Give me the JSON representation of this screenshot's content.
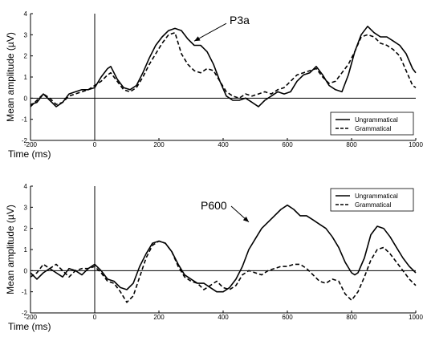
{
  "chart_data": [
    {
      "type": "line",
      "xlabel": "Time (ms)",
      "ylabel": "Mean amplitude (µV)",
      "xlim": [
        -200,
        1000
      ],
      "ylim": [
        -2,
        4
      ],
      "x_ticks": [
        "-200",
        "0",
        "200",
        "400",
        "600",
        "800",
        "1000"
      ],
      "y_ticks": [
        "-2",
        "-1",
        "0",
        "1",
        "2",
        "3",
        "4"
      ],
      "legend": {
        "position": "bottom-right",
        "entries": [
          "Ungrammatical",
          "Grammatical"
        ]
      },
      "annotation": {
        "text": "P3a",
        "x": 420,
        "y": 3.5,
        "points_to": [
          310,
          2.7
        ]
      },
      "series": [
        {
          "name": "Ungrammatical",
          "style": "solid",
          "points": [
            [
              -200,
              -0.3
            ],
            [
              -180,
              -0.2
            ],
            [
              -160,
              0.2
            ],
            [
              -140,
              -0.1
            ],
            [
              -120,
              -0.4
            ],
            [
              -100,
              -0.2
            ],
            [
              -80,
              0.2
            ],
            [
              -60,
              0.3
            ],
            [
              -40,
              0.4
            ],
            [
              -20,
              0.4
            ],
            [
              0,
              0.5
            ],
            [
              20,
              1.0
            ],
            [
              40,
              1.4
            ],
            [
              50,
              1.5
            ],
            [
              70,
              0.9
            ],
            [
              90,
              0.5
            ],
            [
              110,
              0.4
            ],
            [
              130,
              0.6
            ],
            [
              150,
              1.2
            ],
            [
              170,
              1.9
            ],
            [
              190,
              2.5
            ],
            [
              210,
              2.9
            ],
            [
              230,
              3.2
            ],
            [
              250,
              3.3
            ],
            [
              270,
              3.2
            ],
            [
              290,
              2.8
            ],
            [
              310,
              2.5
            ],
            [
              330,
              2.5
            ],
            [
              350,
              2.2
            ],
            [
              370,
              1.6
            ],
            [
              390,
              0.8
            ],
            [
              410,
              0.1
            ],
            [
              430,
              -0.1
            ],
            [
              450,
              -0.1
            ],
            [
              470,
              0.0
            ],
            [
              490,
              -0.2
            ],
            [
              510,
              -0.4
            ],
            [
              530,
              -0.1
            ],
            [
              550,
              0.1
            ],
            [
              570,
              0.3
            ],
            [
              590,
              0.2
            ],
            [
              610,
              0.3
            ],
            [
              630,
              0.8
            ],
            [
              650,
              1.1
            ],
            [
              670,
              1.2
            ],
            [
              690,
              1.5
            ],
            [
              710,
              1.1
            ],
            [
              730,
              0.6
            ],
            [
              750,
              0.4
            ],
            [
              770,
              0.3
            ],
            [
              790,
              1.1
            ],
            [
              810,
              2.2
            ],
            [
              830,
              3.0
            ],
            [
              850,
              3.4
            ],
            [
              870,
              3.1
            ],
            [
              890,
              2.9
            ],
            [
              910,
              2.9
            ],
            [
              930,
              2.7
            ],
            [
              950,
              2.5
            ],
            [
              970,
              2.1
            ],
            [
              990,
              1.4
            ],
            [
              1000,
              1.2
            ]
          ]
        },
        {
          "name": "Grammatical",
          "style": "dashed",
          "points": [
            [
              -200,
              -0.4
            ],
            [
              -180,
              -0.1
            ],
            [
              -160,
              0.2
            ],
            [
              -140,
              0.0
            ],
            [
              -120,
              -0.3
            ],
            [
              -100,
              -0.2
            ],
            [
              -80,
              0.1
            ],
            [
              -60,
              0.2
            ],
            [
              -40,
              0.3
            ],
            [
              -20,
              0.4
            ],
            [
              0,
              0.6
            ],
            [
              20,
              0.8
            ],
            [
              40,
              1.1
            ],
            [
              50,
              1.2
            ],
            [
              70,
              0.8
            ],
            [
              90,
              0.4
            ],
            [
              110,
              0.3
            ],
            [
              130,
              0.5
            ],
            [
              150,
              1.0
            ],
            [
              170,
              1.6
            ],
            [
              190,
              2.1
            ],
            [
              210,
              2.6
            ],
            [
              230,
              3.0
            ],
            [
              250,
              3.1
            ],
            [
              270,
              2.1
            ],
            [
              290,
              1.6
            ],
            [
              310,
              1.3
            ],
            [
              330,
              1.2
            ],
            [
              350,
              1.4
            ],
            [
              370,
              1.3
            ],
            [
              390,
              0.8
            ],
            [
              410,
              0.3
            ],
            [
              430,
              0.1
            ],
            [
              450,
              0.0
            ],
            [
              470,
              0.2
            ],
            [
              490,
              0.1
            ],
            [
              510,
              0.2
            ],
            [
              530,
              0.3
            ],
            [
              550,
              0.2
            ],
            [
              570,
              0.4
            ],
            [
              590,
              0.5
            ],
            [
              610,
              0.8
            ],
            [
              630,
              1.1
            ],
            [
              650,
              1.2
            ],
            [
              670,
              1.3
            ],
            [
              690,
              1.4
            ],
            [
              710,
              1.0
            ],
            [
              730,
              0.7
            ],
            [
              750,
              0.8
            ],
            [
              770,
              1.2
            ],
            [
              790,
              1.6
            ],
            [
              810,
              2.2
            ],
            [
              830,
              2.9
            ],
            [
              850,
              3.0
            ],
            [
              870,
              2.9
            ],
            [
              890,
              2.6
            ],
            [
              910,
              2.5
            ],
            [
              930,
              2.3
            ],
            [
              950,
              2.0
            ],
            [
              970,
              1.3
            ],
            [
              990,
              0.6
            ],
            [
              1000,
              0.5
            ]
          ]
        }
      ]
    },
    {
      "type": "line",
      "xlabel": "Time (ms)",
      "ylabel": "Mean amplitude (µV)",
      "xlim": [
        -200,
        1000
      ],
      "ylim": [
        -2,
        4
      ],
      "x_ticks": [
        "-200",
        "0",
        "200",
        "400",
        "600",
        "800",
        "1000"
      ],
      "y_ticks": [
        "-2",
        "-1",
        "0",
        "1",
        "2",
        "3",
        "4"
      ],
      "legend": {
        "position": "top-right",
        "entries": [
          "Ungrammatical",
          "Grammatical"
        ]
      },
      "annotation": {
        "text": "P600",
        "x": 330,
        "y": 2.9,
        "points_to": [
          480,
          2.3
        ]
      },
      "series": [
        {
          "name": "Ungrammatical",
          "style": "solid",
          "points": [
            [
              -200,
              -0.1
            ],
            [
              -180,
              -0.4
            ],
            [
              -160,
              -0.1
            ],
            [
              -140,
              0.1
            ],
            [
              -120,
              -0.1
            ],
            [
              -100,
              -0.3
            ],
            [
              -80,
              0.1
            ],
            [
              -60,
              0.0
            ],
            [
              -40,
              -0.2
            ],
            [
              -20,
              0.1
            ],
            [
              0,
              0.3
            ],
            [
              20,
              0.0
            ],
            [
              40,
              -0.4
            ],
            [
              60,
              -0.5
            ],
            [
              80,
              -0.8
            ],
            [
              100,
              -0.9
            ],
            [
              120,
              -0.6
            ],
            [
              140,
              0.2
            ],
            [
              160,
              0.8
            ],
            [
              180,
              1.3
            ],
            [
              200,
              1.4
            ],
            [
              220,
              1.3
            ],
            [
              240,
              0.9
            ],
            [
              260,
              0.3
            ],
            [
              280,
              -0.2
            ],
            [
              300,
              -0.4
            ],
            [
              320,
              -0.6
            ],
            [
              340,
              -0.6
            ],
            [
              360,
              -0.8
            ],
            [
              380,
              -1.0
            ],
            [
              400,
              -1.0
            ],
            [
              420,
              -0.8
            ],
            [
              440,
              -0.4
            ],
            [
              460,
              0.2
            ],
            [
              480,
              1.0
            ],
            [
              500,
              1.5
            ],
            [
              520,
              2.0
            ],
            [
              540,
              2.3
            ],
            [
              560,
              2.6
            ],
            [
              580,
              2.9
            ],
            [
              600,
              3.1
            ],
            [
              620,
              2.9
            ],
            [
              640,
              2.6
            ],
            [
              660,
              2.6
            ],
            [
              680,
              2.4
            ],
            [
              700,
              2.2
            ],
            [
              720,
              2.0
            ],
            [
              740,
              1.6
            ],
            [
              760,
              1.1
            ],
            [
              780,
              0.4
            ],
            [
              800,
              -0.1
            ],
            [
              810,
              -0.2
            ],
            [
              820,
              -0.1
            ],
            [
              840,
              0.6
            ],
            [
              860,
              1.7
            ],
            [
              880,
              2.1
            ],
            [
              900,
              2.0
            ],
            [
              920,
              1.6
            ],
            [
              940,
              1.1
            ],
            [
              960,
              0.6
            ],
            [
              980,
              0.2
            ],
            [
              1000,
              -0.1
            ]
          ]
        },
        {
          "name": "Grammatical",
          "style": "dashed",
          "points": [
            [
              -200,
              -0.3
            ],
            [
              -180,
              -0.1
            ],
            [
              -160,
              0.3
            ],
            [
              -140,
              0.1
            ],
            [
              -120,
              0.3
            ],
            [
              -100,
              0.0
            ],
            [
              -80,
              -0.3
            ],
            [
              -60,
              0.0
            ],
            [
              -40,
              0.1
            ],
            [
              -20,
              0.1
            ],
            [
              0,
              0.2
            ],
            [
              20,
              -0.1
            ],
            [
              40,
              -0.5
            ],
            [
              60,
              -0.6
            ],
            [
              80,
              -1.0
            ],
            [
              100,
              -1.5
            ],
            [
              120,
              -1.2
            ],
            [
              140,
              -0.3
            ],
            [
              160,
              0.6
            ],
            [
              180,
              1.2
            ],
            [
              200,
              1.4
            ],
            [
              220,
              1.3
            ],
            [
              240,
              0.9
            ],
            [
              260,
              0.2
            ],
            [
              280,
              -0.3
            ],
            [
              300,
              -0.5
            ],
            [
              320,
              -0.6
            ],
            [
              340,
              -0.9
            ],
            [
              360,
              -0.7
            ],
            [
              380,
              -0.5
            ],
            [
              400,
              -0.8
            ],
            [
              420,
              -0.9
            ],
            [
              440,
              -0.7
            ],
            [
              460,
              -0.2
            ],
            [
              480,
              0.0
            ],
            [
              500,
              -0.1
            ],
            [
              520,
              -0.2
            ],
            [
              540,
              0.0
            ],
            [
              560,
              0.1
            ],
            [
              580,
              0.2
            ],
            [
              600,
              0.2
            ],
            [
              620,
              0.3
            ],
            [
              640,
              0.3
            ],
            [
              660,
              0.1
            ],
            [
              680,
              -0.2
            ],
            [
              700,
              -0.5
            ],
            [
              720,
              -0.6
            ],
            [
              740,
              -0.4
            ],
            [
              760,
              -0.5
            ],
            [
              780,
              -1.1
            ],
            [
              800,
              -1.4
            ],
            [
              820,
              -1.0
            ],
            [
              840,
              -0.3
            ],
            [
              860,
              0.5
            ],
            [
              880,
              1.0
            ],
            [
              900,
              1.1
            ],
            [
              920,
              0.8
            ],
            [
              940,
              0.4
            ],
            [
              960,
              0.0
            ],
            [
              980,
              -0.4
            ],
            [
              1000,
              -0.7
            ]
          ]
        }
      ]
    }
  ]
}
